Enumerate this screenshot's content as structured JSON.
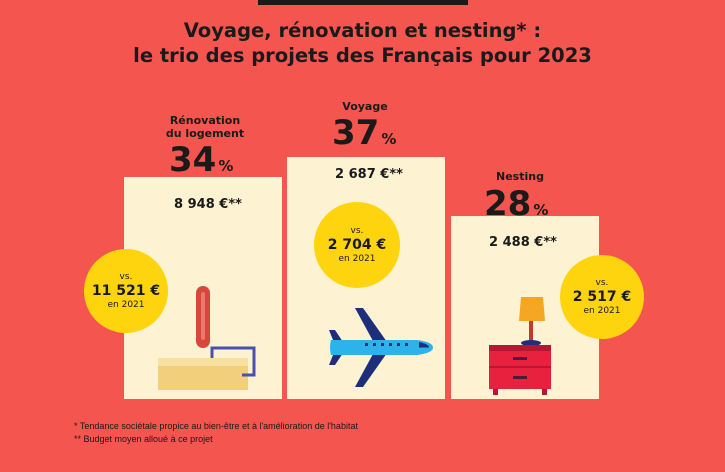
{
  "title_line1": "Voyage, rénovation et nesting* :",
  "title_line2": "le trio des projets des Français pour 2023",
  "chart_data": {
    "type": "bar",
    "categories": [
      "Rénovation du logement",
      "Voyage",
      "Nesting"
    ],
    "values": [
      34,
      37,
      28
    ],
    "unit": "%",
    "budget_2023": [
      "8 948 €**",
      "2 687 €**",
      "2 488 €**"
    ],
    "budget_2021": [
      "11 521 €",
      "2 704 €",
      "2 517 €"
    ]
  },
  "labels": {
    "renov_line1": "Rénovation",
    "renov_line2": "du logement",
    "voyage": "Voyage",
    "nesting": "Nesting",
    "pct_symbol": "%",
    "vs": "vs.",
    "year_2021": "en 2021"
  },
  "footnotes": {
    "f1": "* Tendance sociétale propice au bien-être et à l'amélioration de l'habitat",
    "f2": "** Budget moyen alloué à ce projet"
  },
  "colors": {
    "background": "#f4554f",
    "box": "#fdf3d2",
    "circle": "#fdd40d",
    "plane": "#2bb3ea",
    "plane_dark": "#1f2e7a",
    "nightstand": "#e8213f",
    "lamp_shade": "#f5a623",
    "roller_handle": "#d9473c"
  }
}
